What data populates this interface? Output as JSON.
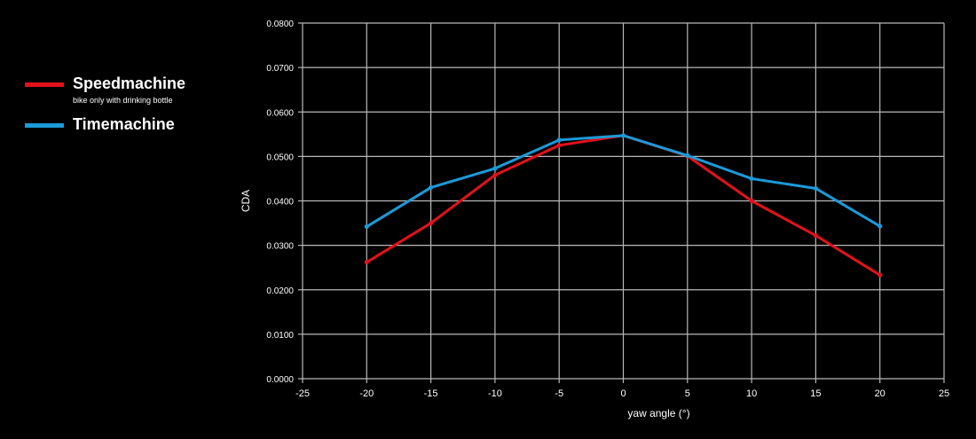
{
  "chart_data": {
    "type": "line",
    "title": "",
    "xlabel": "yaw angle (°)",
    "ylabel": "CDA",
    "xlim": [
      -25,
      25
    ],
    "ylim": [
      0,
      0.08
    ],
    "x_ticks": [
      "-25",
      "-20",
      "-15",
      "-10",
      "-5",
      "0",
      "5",
      "10",
      "15",
      "20",
      "25"
    ],
    "y_ticks": [
      "0.0000",
      "0.0100",
      "0.0200",
      "0.0300",
      "0.0400",
      "0.0500",
      "0.0600",
      "0.0700",
      "0.0800"
    ],
    "grid": true,
    "legend_position": "left",
    "series": [
      {
        "name": "Speedmachine",
        "subtitle": "bike only with drinking bottle",
        "color": "#e3111b",
        "x": [
          -20,
          -15,
          -10,
          -5,
          0,
          5,
          10,
          15,
          20
        ],
        "values": [
          0.0262,
          0.035,
          0.0458,
          0.0525,
          0.0547,
          0.0501,
          0.04,
          0.0322,
          0.0233
        ]
      },
      {
        "name": "Timemachine",
        "subtitle": "",
        "color": "#1b9ad8",
        "x": [
          -20,
          -15,
          -10,
          -5,
          0,
          5,
          10,
          15,
          20
        ],
        "values": [
          0.0342,
          0.043,
          0.0473,
          0.0537,
          0.0547,
          0.0502,
          0.045,
          0.0428,
          0.0343
        ]
      }
    ]
  }
}
